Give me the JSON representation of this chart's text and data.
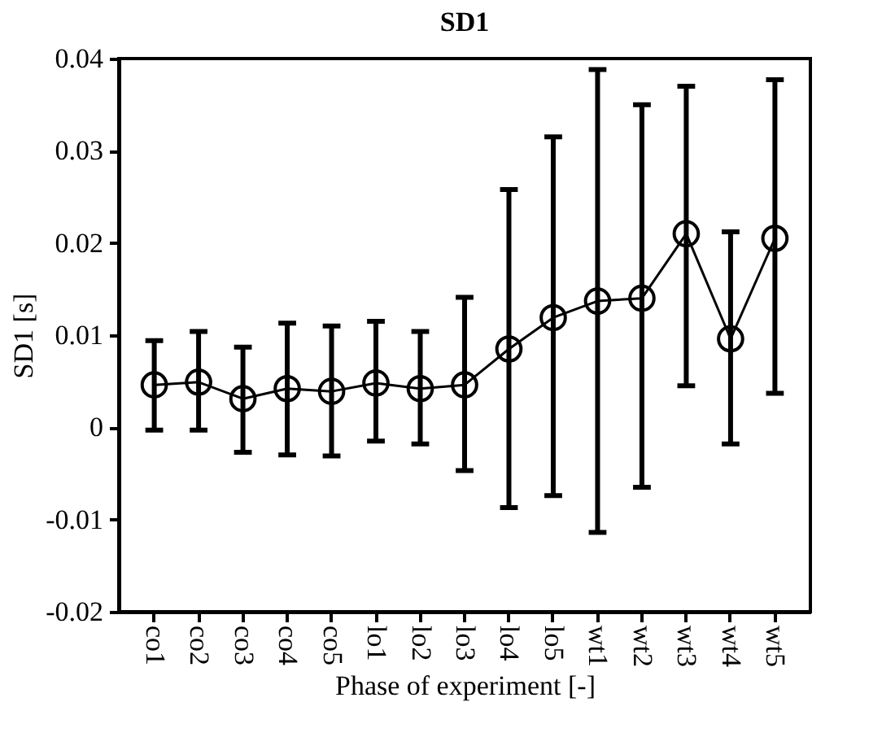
{
  "chart_data": {
    "type": "line",
    "title": "SD1",
    "xlabel": "Phase of experiment [-]",
    "ylabel": "SD1 [s]",
    "categories": [
      "co1",
      "co2",
      "co3",
      "co4",
      "co5",
      "lo1",
      "lo2",
      "lo3",
      "lo4",
      "lo5",
      "wt1",
      "wt2",
      "wt3",
      "wt4",
      "wt5"
    ],
    "series": [
      {
        "color": "#000000",
        "values": [
          0.0046,
          0.0049,
          0.0031,
          0.0042,
          0.0039,
          0.0048,
          0.0042,
          0.0046,
          0.0085,
          0.0119,
          0.0137,
          0.014,
          0.021,
          0.0096,
          0.0205
        ],
        "errors": [
          [
            -0.0003,
            0.0094
          ],
          [
            -0.0003,
            0.0104
          ],
          [
            -0.0027,
            0.0087
          ],
          [
            -0.003,
            0.0113
          ],
          [
            -0.0031,
            0.011
          ],
          [
            -0.0015,
            0.0115
          ],
          [
            -0.0018,
            0.0104
          ],
          [
            -0.0047,
            0.0141
          ],
          [
            -0.0087,
            0.0258
          ],
          [
            -0.0074,
            0.0315
          ],
          [
            -0.0114,
            0.0388
          ],
          [
            -0.0065,
            0.035
          ],
          [
            0.0045,
            0.037
          ],
          [
            -0.0018,
            0.0212
          ],
          [
            0.0037,
            0.0377
          ]
        ]
      }
    ],
    "ylim": [
      -0.02,
      0.04
    ],
    "yticks": [
      -0.02,
      -0.01,
      0,
      0.01,
      0.02,
      0.03,
      0.04
    ],
    "marker": "circle",
    "line_style": "solid",
    "grid": false
  }
}
